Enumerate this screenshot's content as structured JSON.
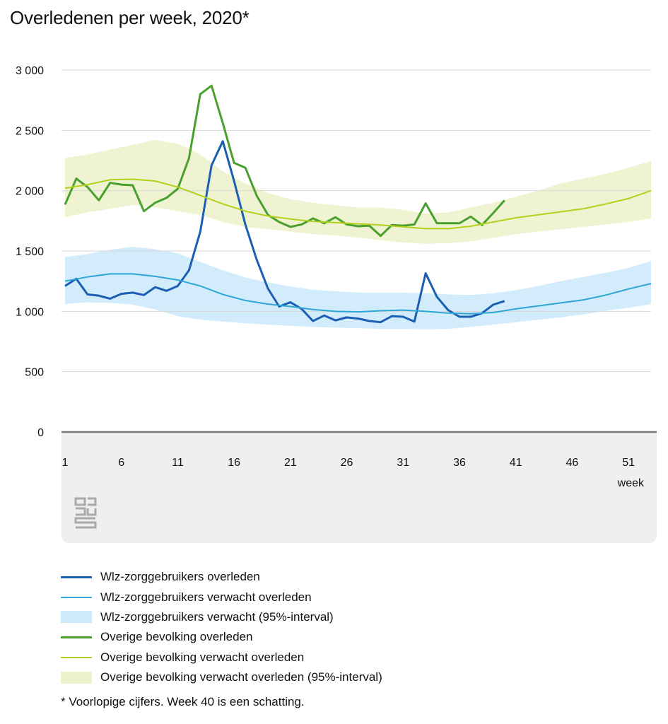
{
  "title": "Overledenen per week, 2020*",
  "footnote": "* Voorlopige cijfers. Week 40 is een schatting.",
  "colors": {
    "wlz_observed": "#1a5fb4",
    "wlz_expected": "#2ea6d6",
    "wlz_band": "#cdeafb",
    "other_observed": "#4aa02c",
    "other_expected": "#b5cf1c",
    "other_band": "#edf2cc"
  },
  "chart_data": {
    "type": "line",
    "xlabel": "week",
    "x_ticks": [
      1,
      6,
      11,
      16,
      21,
      26,
      31,
      36,
      41,
      46,
      51
    ],
    "y_ticks": [
      0,
      500,
      1000,
      1500,
      2000,
      2500,
      3000
    ],
    "y_tick_labels": [
      "0",
      "500",
      "1 000",
      "1 500",
      "2 000",
      "2 500",
      "3 000"
    ],
    "xlim": [
      1,
      53
    ],
    "ylim": [
      0,
      3000
    ],
    "grid": true,
    "legend_position": "bottom",
    "series": [
      {
        "name": "Wlz-zorggebruikers overleden",
        "type": "line",
        "color_key": "wlz_observed",
        "x": [
          1,
          2,
          3,
          4,
          5,
          6,
          7,
          8,
          9,
          10,
          11,
          12,
          13,
          14,
          15,
          16,
          17,
          18,
          19,
          20,
          21,
          22,
          23,
          24,
          25,
          26,
          27,
          28,
          29,
          30,
          31,
          32,
          33,
          34,
          35,
          36,
          37,
          38,
          39,
          40
        ],
        "values": [
          1210,
          1270,
          1140,
          1130,
          1105,
          1145,
          1155,
          1135,
          1200,
          1170,
          1210,
          1340,
          1660,
          2210,
          2410,
          2080,
          1720,
          1430,
          1190,
          1040,
          1075,
          1020,
          920,
          965,
          925,
          950,
          940,
          920,
          910,
          960,
          955,
          915,
          1315,
          1120,
          1010,
          955,
          955,
          985,
          1055,
          1085
        ]
      },
      {
        "name": "Wlz-zorggebruikers verwacht overleden",
        "type": "line",
        "color_key": "wlz_expected",
        "x": [
          1,
          3,
          5,
          7,
          9,
          11,
          13,
          15,
          17,
          19,
          21,
          23,
          25,
          27,
          29,
          31,
          33,
          35,
          37,
          39,
          41,
          43,
          45,
          47,
          49,
          51,
          53
        ],
        "values": [
          1250,
          1285,
          1310,
          1310,
          1290,
          1260,
          1210,
          1140,
          1090,
          1060,
          1040,
          1015,
          1000,
          995,
          1005,
          1010,
          1000,
          985,
          980,
          990,
          1020,
          1045,
          1070,
          1095,
          1135,
          1185,
          1230
        ]
      },
      {
        "name": "Wlz-zorggebruikers verwacht (95%-interval)",
        "type": "band",
        "color_key": "wlz_band",
        "x": [
          1,
          3,
          5,
          7,
          9,
          11,
          13,
          15,
          17,
          19,
          21,
          23,
          25,
          27,
          29,
          31,
          33,
          35,
          37,
          39,
          41,
          43,
          45,
          47,
          49,
          51,
          53
        ],
        "lower": [
          1060,
          1075,
          1070,
          1055,
          1015,
          960,
          930,
          915,
          900,
          890,
          880,
          870,
          865,
          860,
          855,
          855,
          850,
          855,
          870,
          890,
          910,
          930,
          950,
          975,
          1005,
          1030,
          1060
        ],
        "upper": [
          1450,
          1475,
          1510,
          1535,
          1515,
          1480,
          1410,
          1340,
          1280,
          1240,
          1205,
          1180,
          1165,
          1155,
          1155,
          1155,
          1150,
          1140,
          1135,
          1150,
          1175,
          1210,
          1250,
          1285,
          1320,
          1360,
          1415
        ]
      },
      {
        "name": "Overige bevolking overleden",
        "type": "line",
        "color_key": "other_observed",
        "x": [
          1,
          2,
          3,
          4,
          5,
          6,
          7,
          8,
          9,
          10,
          11,
          12,
          13,
          14,
          15,
          16,
          17,
          18,
          19,
          20,
          21,
          22,
          23,
          24,
          25,
          26,
          27,
          28,
          29,
          30,
          31,
          32,
          33,
          34,
          35,
          36,
          37,
          38,
          39,
          40
        ],
        "values": [
          1885,
          2100,
          2030,
          1920,
          2065,
          2050,
          2045,
          1830,
          1900,
          1940,
          2015,
          2270,
          2800,
          2870,
          2560,
          2230,
          2190,
          1960,
          1800,
          1740,
          1700,
          1720,
          1770,
          1730,
          1780,
          1720,
          1705,
          1710,
          1625,
          1715,
          1710,
          1720,
          1895,
          1730,
          1730,
          1730,
          1785,
          1715,
          1815,
          1920
        ]
      },
      {
        "name": "Overige bevolking verwacht overleden",
        "type": "line",
        "color_key": "other_expected",
        "x": [
          1,
          3,
          5,
          7,
          9,
          11,
          13,
          15,
          17,
          19,
          21,
          23,
          25,
          27,
          29,
          31,
          33,
          35,
          37,
          39,
          41,
          43,
          45,
          47,
          49,
          51,
          53
        ],
        "values": [
          2020,
          2050,
          2090,
          2095,
          2080,
          2030,
          1960,
          1890,
          1830,
          1790,
          1765,
          1745,
          1735,
          1725,
          1715,
          1700,
          1685,
          1685,
          1705,
          1740,
          1775,
          1800,
          1825,
          1850,
          1890,
          1935,
          2000
        ]
      },
      {
        "name": "Overige bevolking verwacht overleden (95%-interval)",
        "type": "band",
        "color_key": "other_band",
        "x": [
          1,
          3,
          5,
          7,
          9,
          11,
          13,
          15,
          17,
          19,
          21,
          23,
          25,
          27,
          29,
          31,
          33,
          35,
          37,
          39,
          41,
          43,
          45,
          47,
          49,
          51,
          53
        ],
        "lower": [
          1780,
          1820,
          1850,
          1880,
          1860,
          1830,
          1800,
          1740,
          1700,
          1680,
          1660,
          1640,
          1630,
          1610,
          1590,
          1570,
          1560,
          1565,
          1580,
          1610,
          1640,
          1660,
          1680,
          1700,
          1720,
          1740,
          1770
        ],
        "upper": [
          2270,
          2300,
          2340,
          2380,
          2420,
          2390,
          2300,
          2160,
          2060,
          1980,
          1930,
          1900,
          1880,
          1860,
          1860,
          1840,
          1810,
          1820,
          1860,
          1900,
          1950,
          2000,
          2060,
          2100,
          2140,
          2190,
          2245
        ]
      }
    ]
  }
}
